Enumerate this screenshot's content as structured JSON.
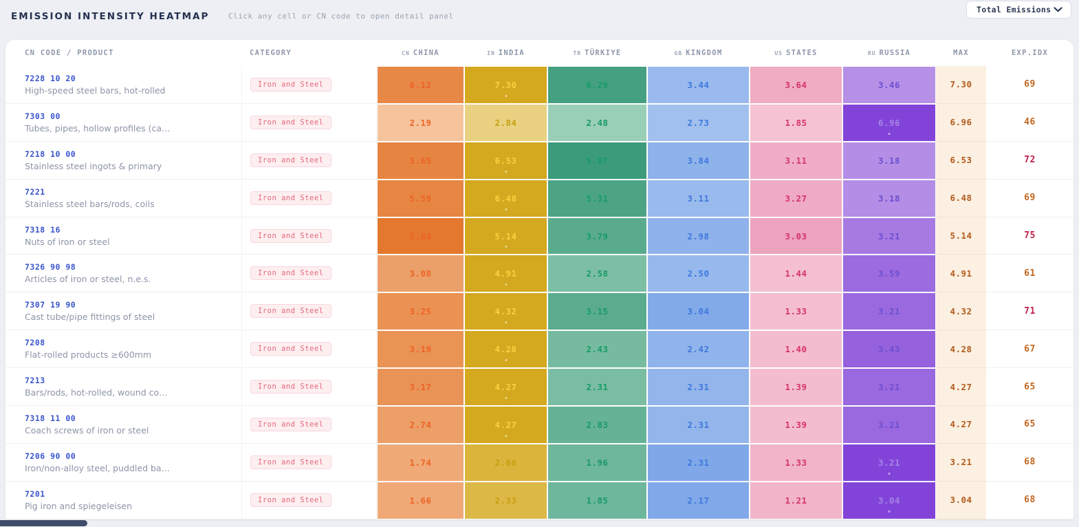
{
  "header": {
    "title": "EMISSION INTENSITY HEATMAP",
    "subtitle": "Click any cell or CN code to open detail panel",
    "filter_dropdown": {
      "selected": "Total Emissions"
    }
  },
  "table": {
    "col_product": "CN CODE / PRODUCT",
    "col_category": "CATEGORY",
    "col_max": "MAX",
    "col_exp": "EXP.IDX",
    "countries": [
      {
        "code": "CN",
        "name": "CHINA"
      },
      {
        "code": "IN",
        "name": "INDIA"
      },
      {
        "code": "TR",
        "name": "TÜRKIYE"
      },
      {
        "code": "GB",
        "name": "KINGDOM"
      },
      {
        "code": "US",
        "name": "STATES"
      },
      {
        "code": "RU",
        "name": "RUSSIA"
      }
    ],
    "rows": [
      {
        "cn_code": "7228 10 20",
        "product": "High-speed steel bars, hot-rolled",
        "category": "Iron and Steel",
        "values": [
          "6.12",
          "7.30",
          "6.29",
          "3.44",
          "3.64",
          "3.46"
        ],
        "max": "7.30",
        "exp_idx": "69"
      },
      {
        "cn_code": "7303 00",
        "product": "Tubes, pipes, hollow profiles (ca…",
        "category": "Iron and Steel",
        "values": [
          "2.19",
          "2.84",
          "2.48",
          "2.73",
          "1.85",
          "6.96"
        ],
        "max": "6.96",
        "exp_idx": "46"
      },
      {
        "cn_code": "7218 10 00",
        "product": "Stainless steel ingots & primary",
        "category": "Iron and Steel",
        "values": [
          "5.65",
          "6.53",
          "5.97",
          "3.84",
          "3.11",
          "3.18"
        ],
        "max": "6.53",
        "exp_idx": "72"
      },
      {
        "cn_code": "7221",
        "product": "Stainless steel bars/rods, coils",
        "category": "Iron and Steel",
        "values": [
          "5.59",
          "6.48",
          "5.31",
          "3.11",
          "3.27",
          "3.18"
        ],
        "max": "6.48",
        "exp_idx": "69"
      },
      {
        "cn_code": "7318 16",
        "product": "Nuts of iron or steel",
        "category": "Iron and Steel",
        "values": [
          "5.04",
          "5.14",
          "3.79",
          "2.98",
          "3.03",
          "3.21"
        ],
        "max": "5.14",
        "exp_idx": "75"
      },
      {
        "cn_code": "7326 90 98",
        "product": "Articles of iron or steel, n.e.s.",
        "category": "Iron and Steel",
        "values": [
          "3.08",
          "4.91",
          "2.58",
          "2.50",
          "1.44",
          "3.59"
        ],
        "max": "4.91",
        "exp_idx": "61"
      },
      {
        "cn_code": "7307 19 90",
        "product": "Cast tube/pipe fittings of steel",
        "category": "Iron and Steel",
        "values": [
          "3.25",
          "4.32",
          "3.15",
          "3.04",
          "1.33",
          "3.21"
        ],
        "max": "4.32",
        "exp_idx": "71"
      },
      {
        "cn_code": "7208",
        "product": "Flat-rolled products ≥600mm",
        "category": "Iron and Steel",
        "values": [
          "3.19",
          "4.28",
          "2.43",
          "2.42",
          "1.40",
          "3.43"
        ],
        "max": "4.28",
        "exp_idx": "67"
      },
      {
        "cn_code": "7213",
        "product": "Bars/rods, hot-rolled, wound co…",
        "category": "Iron and Steel",
        "values": [
          "3.17",
          "4.27",
          "2.31",
          "2.31",
          "1.39",
          "3.21"
        ],
        "max": "4.27",
        "exp_idx": "65"
      },
      {
        "cn_code": "7318 11 00",
        "product": "Coach screws of iron or steel",
        "category": "Iron and Steel",
        "values": [
          "2.74",
          "4.27",
          "2.83",
          "2.31",
          "1.39",
          "3.21"
        ],
        "max": "4.27",
        "exp_idx": "65"
      },
      {
        "cn_code": "7206 90 00",
        "product": "Iron/non-alloy steel, puddled ba…",
        "category": "Iron and Steel",
        "values": [
          "1.74",
          "2.66",
          "1.96",
          "2.31",
          "1.33",
          "3.21"
        ],
        "max": "3.21",
        "exp_idx": "68"
      },
      {
        "cn_code": "7201",
        "product": "Pig iron and spiegeleisen",
        "category": "Iron and Steel",
        "values": [
          "1.66",
          "2.33",
          "1.85",
          "2.17",
          "1.21",
          "3.04"
        ],
        "max": "3.04",
        "exp_idx": "68"
      }
    ]
  },
  "colors": {
    "page_bg": "#edeff4",
    "card_bg": "#ffffff",
    "title_text": "#25314f",
    "header_text": "#8d97ab",
    "cn_code_text": "#3a55cc",
    "product_text": "#8d94a6",
    "badge_text": "#e4697c",
    "badge_bg": "#fdeef0",
    "max_col_bg": "#fbf0e1",
    "max_col_text": "#b35a1d",
    "exp_low": "#c2661f",
    "exp_high": "#c11f48",
    "exp_threshold": 70,
    "scrollbar_thumb": "#3f4c69",
    "country_palette": [
      {
        "light": "#f7cba8",
        "strong": "#e2762b",
        "text": "#ed6326",
        "max_text": "#f09a5a"
      },
      {
        "light": "#eedc9b",
        "strong": "#d4a81f",
        "text": "#c7a011",
        "max_text": "#fbd13d"
      },
      {
        "light": "#abd8c2",
        "strong": "#2e9372",
        "text": "#189a67",
        "max_text": "#5ec9a2"
      },
      {
        "light": "#b0cbf1",
        "strong": "#6493e2",
        "text": "#3e78dd",
        "max_text": "#9cc0f5"
      },
      {
        "light": "#f5c3d4",
        "strong": "#e27da1",
        "text": "#d6336c",
        "max_text": "#f3a8c4"
      },
      {
        "light": "#cbb0ec",
        "strong": "#8244d8",
        "text": "#6d4fd0",
        "max_text": "#a583e8"
      }
    ]
  }
}
